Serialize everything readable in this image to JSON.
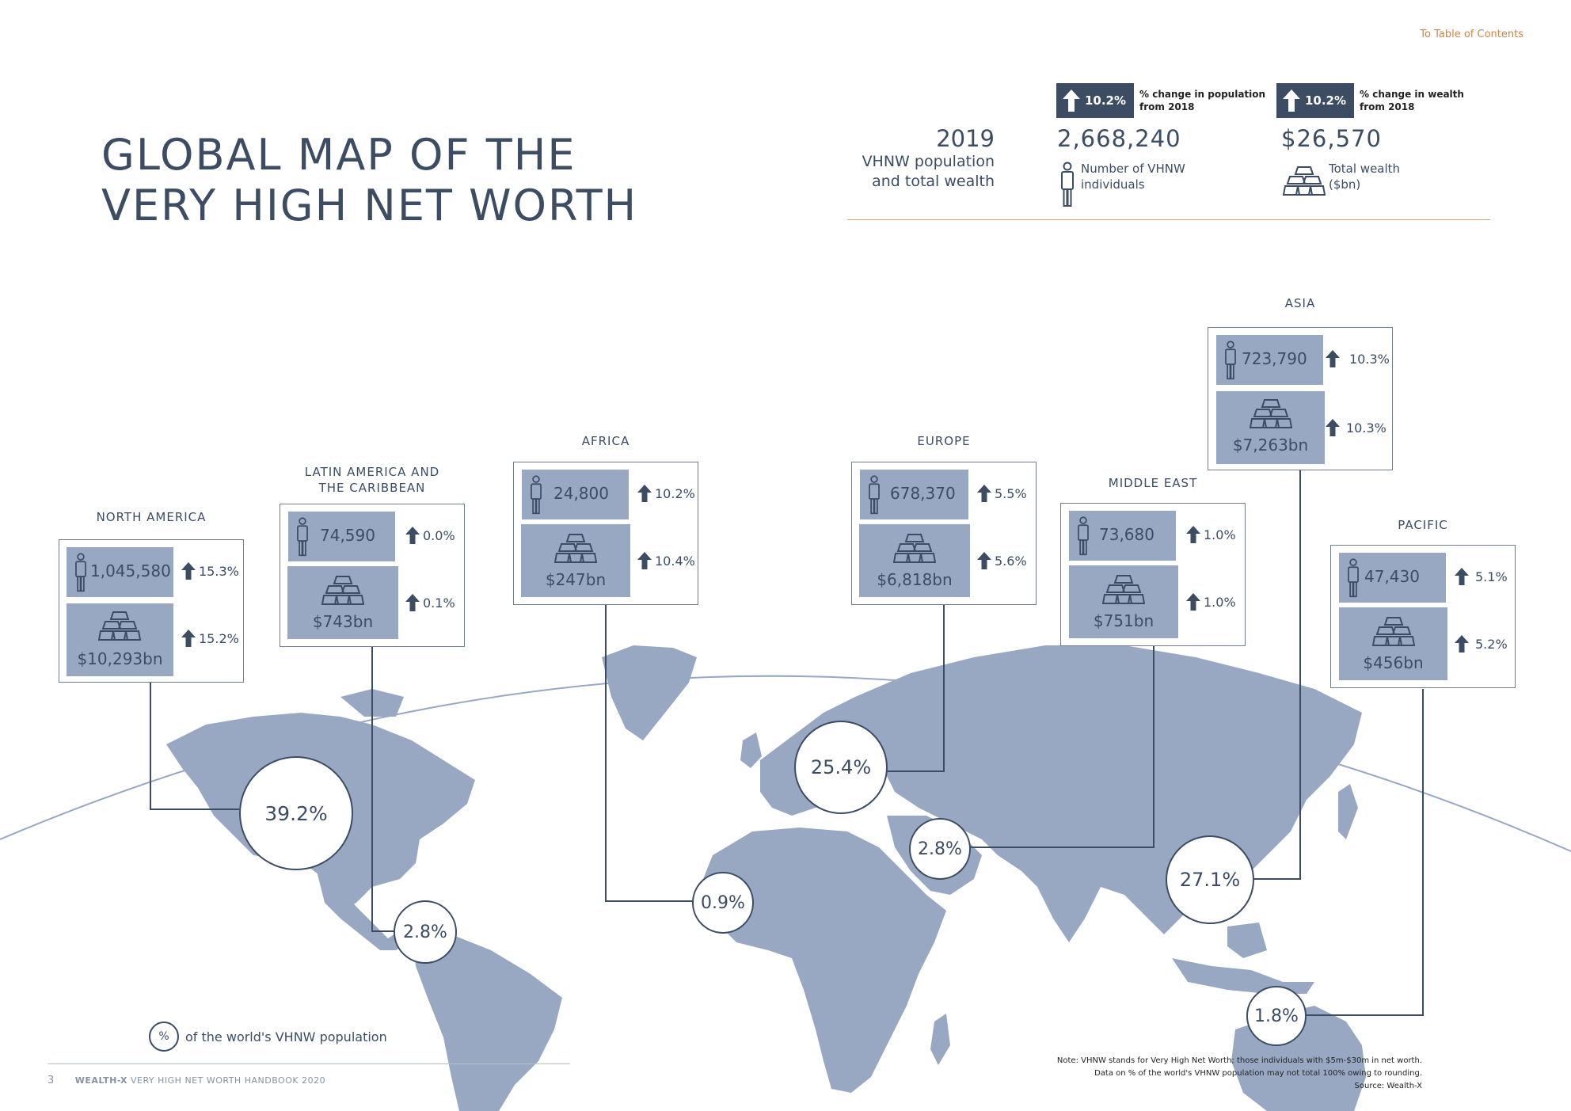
{
  "toc_link": "To Table of Contents",
  "title": {
    "line1": "GLOBAL MAP OF THE",
    "line2": "VERY HIGH NET WORTH"
  },
  "summary": {
    "year": "2019",
    "subtitle_line1": "VHNW population",
    "subtitle_line2": "and total wealth",
    "population": {
      "change": "10.2%",
      "change_label_line1": "% change in population",
      "change_label_line2": "from 2018",
      "value": "2,668,240",
      "label_line1": "Number of VHNW",
      "label_line2": "individuals",
      "icon": "person-icon"
    },
    "wealth": {
      "change": "10.2%",
      "change_label_line1": "% change in wealth",
      "change_label_line2": "from 2018",
      "value": "$26,570",
      "label_line1": "Total wealth",
      "label_line2": "($bn)",
      "icon": "gold-bars-icon"
    }
  },
  "regions": {
    "north_america": {
      "name": "NORTH AMERICA",
      "population": "1,045,580",
      "pop_change": "15.3%",
      "wealth": "$10,293bn",
      "wealth_change": "15.2%",
      "share": "39.2%"
    },
    "latin_america": {
      "name_line1": "LATIN AMERICA AND",
      "name_line2": "THE CARIBBEAN",
      "population": "74,590",
      "pop_change": "0.0%",
      "wealth": "$743bn",
      "wealth_change": "0.1%",
      "share": "2.8%"
    },
    "africa": {
      "name": "AFRICA",
      "population": "24,800",
      "pop_change": "10.2%",
      "wealth": "$247bn",
      "wealth_change": "10.4%",
      "share": "0.9%"
    },
    "europe": {
      "name": "EUROPE",
      "population": "678,370",
      "pop_change": "5.5%",
      "wealth": "$6,818bn",
      "wealth_change": "5.6%",
      "share": "25.4%"
    },
    "middle_east": {
      "name": "MIDDLE EAST",
      "population": "73,680",
      "pop_change": "1.0%",
      "wealth": "$751bn",
      "wealth_change": "1.0%",
      "share": "2.8%"
    },
    "asia": {
      "name": "ASIA",
      "population": "723,790",
      "pop_change": "10.3%",
      "wealth": "$7,263bn",
      "wealth_change": "10.3%",
      "share": "27.1%"
    },
    "pacific": {
      "name": "PACIFIC",
      "population": "47,430",
      "pop_change": "5.1%",
      "wealth": "$456bn",
      "wealth_change": "5.2%",
      "share": "1.8%"
    }
  },
  "legend": {
    "symbol": "%",
    "text": "of the world's VHNW population"
  },
  "footer": {
    "page": "3",
    "brand": "WEALTH-X",
    "publication": "VERY HIGH NET WORTH HANDBOOK 2020"
  },
  "note": {
    "line1": "Note: VHNW stands for Very High Net Worth; those individuals with $5m-$30m in net worth.",
    "line2": "Data on % of the world's VHNW population may not total 100% owing to rounding.",
    "source": "Source: Wealth-X"
  },
  "colors": {
    "navy": "#3b4c63",
    "map": "#98a8c2",
    "accent": "#c8874a"
  }
}
